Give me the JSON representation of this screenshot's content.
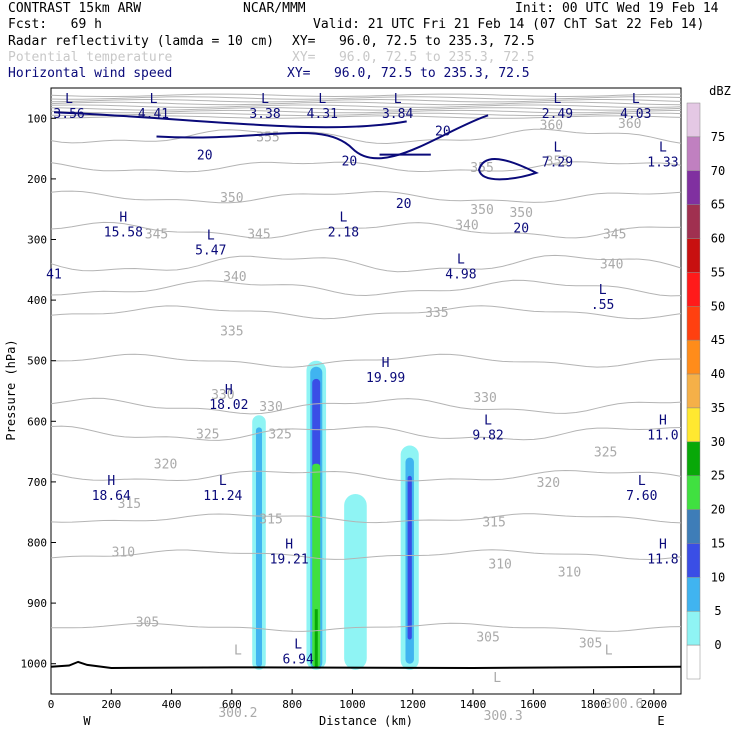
{
  "header": {
    "model": "CONTRAST 15km ARW",
    "org": "NCAR/MMM",
    "init": "Init: 00 UTC Wed 19 Feb 14",
    "fcst": "Fcst:   69 h",
    "valid": "Valid: 21 UTC Fri 21 Feb 14 (07 ChT Sat 22 Feb 14)",
    "line1_label": "Radar reflectivity (lamda = 10 cm)",
    "line1_xy": "XY=   96.0, 72.5 to 235.3, 72.5",
    "line2_label": "Potential temperature",
    "line2_xy": "XY=   96.0, 72.5 to 235.3, 72.5",
    "line3_label": "Horizontal wind speed",
    "line3_xy": "XY=   96.0, 72.5 to 235.3, 72.5"
  },
  "colors": {
    "wind_contour": "#0a0a7a",
    "theta_contour": "#b4b4b4",
    "terrain": "#000000"
  },
  "chart_data": {
    "type": "cross-section",
    "xlabel": "Distance (km)",
    "ylabel": "Pressure (hPa)",
    "x_range": [
      0,
      2090
    ],
    "y_range": [
      50,
      1050
    ],
    "x_ticks": [
      "0",
      "200",
      "400",
      "600",
      "800",
      "1000",
      "1200",
      "1400",
      "1600",
      "1800",
      "2000"
    ],
    "y_ticks": [
      "100",
      "200",
      "300",
      "400",
      "500",
      "600",
      "700",
      "800",
      "900",
      "1000"
    ],
    "x_end_labels": {
      "left": "W",
      "right": "E"
    },
    "colorbar": {
      "unit": "dBZ",
      "levels": [
        "0",
        "5",
        "10",
        "15",
        "20",
        "25",
        "30",
        "35",
        "40",
        "45",
        "50",
        "55",
        "60",
        "65",
        "70",
        "75"
      ],
      "colors": [
        "#ffffff",
        "#8ff4f4",
        "#40b4f0",
        "#3a4ee6",
        "#3e7db8",
        "#40e040",
        "#08a808",
        "#ffe830",
        "#f5b048",
        "#ff8c1a",
        "#ff4010",
        "#ff1a1a",
        "#c81010",
        "#a03050",
        "#8030a0",
        "#c080c0",
        "#e4c8e4"
      ]
    },
    "theta_labels": [
      {
        "x": 350,
        "p": 290,
        "t": "345"
      },
      {
        "x": 690,
        "p": 290,
        "t": "345"
      },
      {
        "x": 1380,
        "p": 275,
        "t": "340"
      },
      {
        "x": 1870,
        "p": 290,
        "t": "345"
      },
      {
        "x": 1860,
        "p": 340,
        "t": "340"
      },
      {
        "x": 610,
        "p": 360,
        "t": "340"
      },
      {
        "x": 600,
        "p": 450,
        "t": "335"
      },
      {
        "x": 1280,
        "p": 420,
        "t": "335"
      },
      {
        "x": 570,
        "p": 555,
        "t": "330"
      },
      {
        "x": 730,
        "p": 575,
        "t": "330"
      },
      {
        "x": 1440,
        "p": 560,
        "t": "330"
      },
      {
        "x": 520,
        "p": 620,
        "t": "325"
      },
      {
        "x": 760,
        "p": 620,
        "t": "325"
      },
      {
        "x": 1840,
        "p": 650,
        "t": "325"
      },
      {
        "x": 380,
        "p": 670,
        "t": "320"
      },
      {
        "x": 1650,
        "p": 700,
        "t": "320"
      },
      {
        "x": 260,
        "p": 735,
        "t": "315"
      },
      {
        "x": 730,
        "p": 760,
        "t": "315"
      },
      {
        "x": 1470,
        "p": 765,
        "t": "315"
      },
      {
        "x": 240,
        "p": 815,
        "t": "310"
      },
      {
        "x": 1490,
        "p": 835,
        "t": "310"
      },
      {
        "x": 1720,
        "p": 848,
        "t": "310"
      },
      {
        "x": 320,
        "p": 930,
        "t": "305"
      },
      {
        "x": 1450,
        "p": 955,
        "t": "305"
      },
      {
        "x": 1790,
        "p": 965,
        "t": "305"
      },
      {
        "x": 720,
        "p": 130,
        "t": "355"
      },
      {
        "x": 1430,
        "p": 180,
        "t": "355"
      },
      {
        "x": 1680,
        "p": 170,
        "t": "355"
      },
      {
        "x": 600,
        "p": 230,
        "t": "350"
      },
      {
        "x": 1430,
        "p": 250,
        "t": "350"
      },
      {
        "x": 1560,
        "p": 255,
        "t": "350"
      },
      {
        "x": 1660,
        "p": 110,
        "t": "360"
      },
      {
        "x": 1920,
        "p": 108,
        "t": "360"
      },
      {
        "x": 620,
        "p": 1080,
        "t": "300.2"
      },
      {
        "x": 1500,
        "p": 1085,
        "t": "300.3"
      },
      {
        "x": 1900,
        "p": 1065,
        "t": "300.6"
      }
    ],
    "wind_labels": [
      {
        "x": 510,
        "p": 160,
        "t": "20"
      },
      {
        "x": 990,
        "p": 170,
        "t": "20"
      },
      {
        "x": 1300,
        "p": 120,
        "t": "20"
      },
      {
        "x": 1170,
        "p": 240,
        "t": "20"
      },
      {
        "x": 1560,
        "p": 280,
        "t": "20"
      }
    ],
    "extrema": [
      {
        "x": 60,
        "p": 75,
        "l": "L",
        "v": "3.56"
      },
      {
        "x": 340,
        "p": 75,
        "l": "L",
        "v": "4.41"
      },
      {
        "x": 710,
        "p": 75,
        "l": "L",
        "v": "3.38"
      },
      {
        "x": 900,
        "p": 75,
        "l": "L",
        "v": "4.31"
      },
      {
        "x": 1150,
        "p": 75,
        "l": "L",
        "v": "3.84"
      },
      {
        "x": 1680,
        "p": 75,
        "l": "L",
        "v": "2.49"
      },
      {
        "x": 1940,
        "p": 75,
        "l": "L",
        "v": "4.03"
      },
      {
        "x": 1680,
        "p": 155,
        "l": "L",
        "v": "7.29"
      },
      {
        "x": 2030,
        "p": 155,
        "l": "L",
        "v": "1.33"
      },
      {
        "x": 240,
        "p": 270,
        "l": "H",
        "v": "15.58"
      },
      {
        "x": 530,
        "p": 300,
        "l": "L",
        "v": "5.47"
      },
      {
        "x": 970,
        "p": 270,
        "l": "L",
        "v": "2.18"
      },
      {
        "x": 10,
        "p": 340,
        "l": "",
        "v": "41"
      },
      {
        "x": 1360,
        "p": 340,
        "l": "L",
        "v": "4.98"
      },
      {
        "x": 1830,
        "p": 390,
        "l": "L",
        "v": ".55"
      },
      {
        "x": 1110,
        "p": 510,
        "l": "H",
        "v": "19.99"
      },
      {
        "x": 590,
        "p": 555,
        "l": "H",
        "v": "18.02"
      },
      {
        "x": 1450,
        "p": 605,
        "l": "L",
        "v": "9.82"
      },
      {
        "x": 2030,
        "p": 605,
        "l": "H",
        "v": "11.0"
      },
      {
        "x": 200,
        "p": 705,
        "l": "H",
        "v": "18.64"
      },
      {
        "x": 570,
        "p": 705,
        "l": "L",
        "v": "11.24"
      },
      {
        "x": 1960,
        "p": 705,
        "l": "L",
        "v": "7.60"
      },
      {
        "x": 790,
        "p": 810,
        "l": "H",
        "v": "19.21"
      },
      {
        "x": 2030,
        "p": 810,
        "l": "H",
        "v": "11.8"
      },
      {
        "x": 820,
        "p": 975,
        "l": "L",
        "v": "6.94"
      },
      {
        "x": 620,
        "p": 985,
        "l": "L",
        "v": ""
      },
      {
        "x": 1480,
        "p": 1030,
        "l": "L",
        "v": ""
      },
      {
        "x": 1850,
        "p": 985,
        "l": "L",
        "v": ""
      }
    ],
    "reflectivity_cells": [
      {
        "x": 690,
        "top": 590,
        "bottom": 1010,
        "w": 45,
        "core_top": 610,
        "core_bottom": 1005,
        "core_w": 20
      },
      {
        "x": 880,
        "top": 500,
        "bottom": 1010,
        "w": 65,
        "core_top": 510,
        "core_bottom": 1008,
        "core_w": 40
      },
      {
        "x": 1010,
        "top": 720,
        "bottom": 1010,
        "w": 75,
        "core_top": 0,
        "core_bottom": 0,
        "core_w": 0
      },
      {
        "x": 1190,
        "top": 640,
        "bottom": 1010,
        "w": 60,
        "core_top": 660,
        "core_bottom": 1000,
        "core_w": 28
      }
    ]
  }
}
